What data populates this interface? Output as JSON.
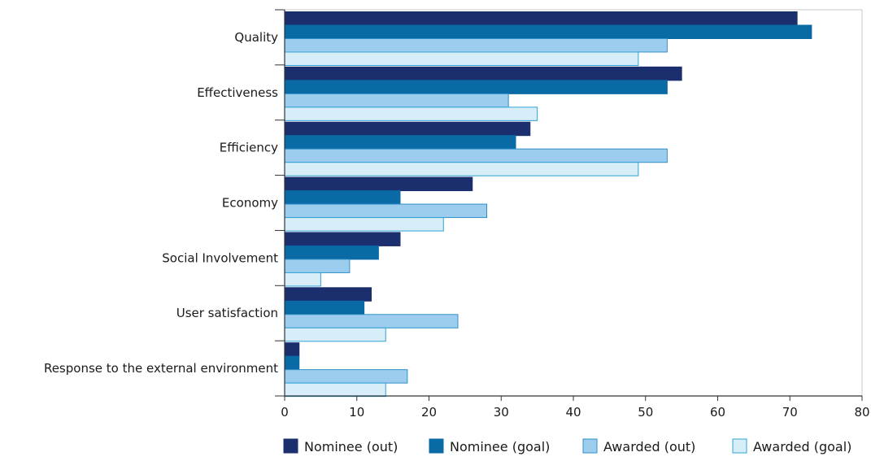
{
  "chart_data": {
    "type": "bar",
    "orientation": "horizontal",
    "categories": [
      "Quality",
      "Effectiveness",
      "Efficiency",
      "Economy",
      "Social Involvement",
      "User satisfaction",
      "Response to the external environment"
    ],
    "series": [
      {
        "name": "Nominee (out)",
        "values": [
          71,
          55,
          34,
          26,
          16,
          12,
          2
        ]
      },
      {
        "name": "Nominee (goal)",
        "values": [
          73,
          53,
          32,
          16,
          13,
          11,
          2
        ]
      },
      {
        "name": "Awarded (out)",
        "values": [
          53,
          31,
          53,
          28,
          9,
          24,
          17
        ]
      },
      {
        "name": "Awarded (goal)",
        "values": [
          49,
          35,
          49,
          22,
          5,
          14,
          14
        ]
      }
    ],
    "xlim": [
      0,
      80
    ],
    "xticks": [
      0,
      10,
      20,
      30,
      40,
      50,
      60,
      70,
      80
    ],
    "grid": false,
    "legend_position": "bottom",
    "colors": {
      "fills": [
        "#1b2f6e",
        "#0a6aa6",
        "#9dcdee",
        "#d7edf8"
      ],
      "strokes": [
        "#1b2f6e",
        "#0a6aa6",
        "#2f90c8",
        "#2fa3d6"
      ],
      "axis": "#333333",
      "frame": "#c9c9c9"
    }
  }
}
